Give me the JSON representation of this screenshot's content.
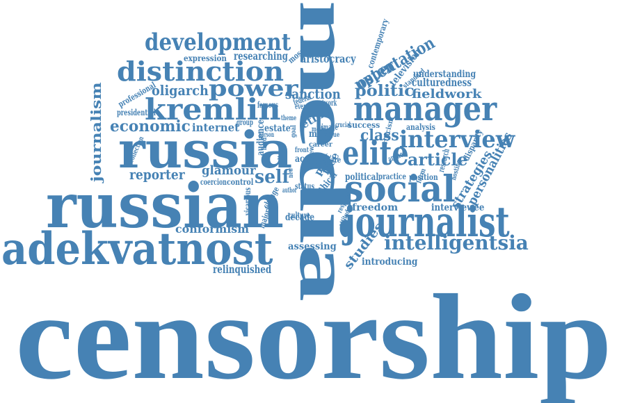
{
  "color": "#4682b4",
  "words": [
    "censorship",
    "media",
    "russian",
    "adekvatnost",
    "russia",
    "journalist",
    "social",
    "manager",
    "elite",
    "kremlin",
    "interview",
    "distinction",
    "development",
    "power",
    "intelligentsia",
    "economic",
    "politic",
    "article",
    "ostentation",
    "class",
    "self",
    "oligarch",
    "journalism",
    "personalities",
    "strategies",
    "glamour",
    "reporter",
    "conformism",
    "studies",
    "fieldwork",
    "sanction",
    "upper",
    "aristocracy",
    "internet",
    "assessing",
    "researching",
    "introducing",
    "relinquished",
    "interviewee",
    "freedom",
    "decade",
    "culturedness",
    "understanding",
    "television",
    "contemporary",
    "control",
    "coercion",
    "audience",
    "estate",
    "ethic",
    "more",
    "success",
    "analysis",
    "position",
    "political",
    "practice",
    "today",
    "state",
    "ethical",
    "status",
    "free",
    "post",
    "acc",
    "culture",
    "moscow",
    "expression",
    "professional",
    "presidential",
    "collection",
    "group",
    "famous",
    "mode",
    "image",
    "event",
    "federal",
    "network",
    "standard",
    "vicarious",
    "majority",
    "criticism",
    "disparity",
    "research",
    "anchor",
    "career",
    "change",
    "author",
    "view",
    "respect",
    "crucial",
    "argue",
    "attitude",
    "person",
    "rights",
    "goal",
    "front",
    "theme",
    "new",
    "list",
    "hosting",
    "form",
    "field"
  ]
}
